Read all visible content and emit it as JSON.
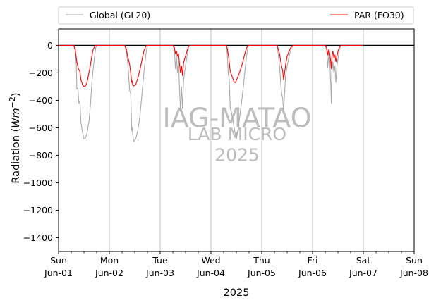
{
  "chart_data": {
    "type": "line",
    "title": "",
    "xlabel": "2025",
    "ylabel": "Radiation ($Wm{-2}$)",
    "ylabel_display": {
      "prefix": "Radiation (",
      "math": "Wm",
      "sup": "−2",
      "suffix": ")"
    },
    "ylim": [
      -1500,
      120
    ],
    "yticks": [
      0,
      -200,
      -400,
      -600,
      -800,
      -1000,
      -1200,
      -1400
    ],
    "ytick_labels": [
      "0",
      "−200",
      "−400",
      "−600",
      "−800",
      "−1000",
      "−1200",
      "−1400"
    ],
    "xlim": [
      0,
      7
    ],
    "x_unit": "days since Sun Jun-01 00:00",
    "xticks": [
      {
        "x": 0,
        "day": "Sun",
        "date": "Jun-01"
      },
      {
        "x": 1,
        "day": "Mon",
        "date": "Jun-02"
      },
      {
        "x": 2,
        "day": "Tue",
        "date": "Jun-03"
      },
      {
        "x": 3,
        "day": "Wed",
        "date": "Jun-04"
      },
      {
        "x": 4,
        "day": "Thu",
        "date": "Jun-05"
      },
      {
        "x": 5,
        "day": "Fri",
        "date": "Jun-06"
      },
      {
        "x": 6,
        "day": "Sat",
        "date": "Jun-07"
      },
      {
        "x": 7,
        "day": "Sun",
        "date": "Jun-08"
      }
    ],
    "minor_ticks_per_day": 4,
    "grid": "vertical-major",
    "zero_line": true,
    "legend": {
      "placement": "top",
      "entries": [
        "Global (GL20)",
        "PAR (FO30)"
      ]
    },
    "watermark": [
      "IAG-MATAO",
      "LAB MICRO",
      "2025"
    ],
    "series": [
      {
        "name": "Global (GL20)",
        "color": "#aaaaaa",
        "points": [
          [
            0.0,
            0
          ],
          [
            0.3,
            0
          ],
          [
            0.33,
            -20
          ],
          [
            0.35,
            -150
          ],
          [
            0.36,
            -320
          ],
          [
            0.38,
            -310
          ],
          [
            0.4,
            -420
          ],
          [
            0.42,
            -410
          ],
          [
            0.44,
            -560
          ],
          [
            0.47,
            -630
          ],
          [
            0.5,
            -680
          ],
          [
            0.53,
            -675
          ],
          [
            0.56,
            -640
          ],
          [
            0.6,
            -550
          ],
          [
            0.63,
            -420
          ],
          [
            0.66,
            -250
          ],
          [
            0.7,
            -110
          ],
          [
            0.73,
            -20
          ],
          [
            0.76,
            0
          ],
          [
            1.3,
            0
          ],
          [
            1.33,
            -40
          ],
          [
            1.36,
            -120
          ],
          [
            1.4,
            -330
          ],
          [
            1.42,
            -350
          ],
          [
            1.44,
            -620
          ],
          [
            1.45,
            -600
          ],
          [
            1.46,
            -650
          ],
          [
            1.48,
            -700
          ],
          [
            1.52,
            -680
          ],
          [
            1.56,
            -620
          ],
          [
            1.6,
            -520
          ],
          [
            1.64,
            -360
          ],
          [
            1.68,
            -200
          ],
          [
            1.72,
            -60
          ],
          [
            1.75,
            0
          ],
          [
            2.25,
            0
          ],
          [
            2.28,
            -30
          ],
          [
            2.3,
            -170
          ],
          [
            2.32,
            -80
          ],
          [
            2.34,
            -200
          ],
          [
            2.36,
            -120
          ],
          [
            2.38,
            -300
          ],
          [
            2.4,
            -480
          ],
          [
            2.42,
            -300
          ],
          [
            2.44,
            -460
          ],
          [
            2.46,
            -260
          ],
          [
            2.48,
            -200
          ],
          [
            2.5,
            -150
          ],
          [
            2.52,
            -100
          ],
          [
            2.56,
            -10
          ],
          [
            2.6,
            0
          ],
          [
            3.3,
            0
          ],
          [
            3.32,
            -60
          ],
          [
            3.34,
            -200
          ],
          [
            3.36,
            -250
          ],
          [
            3.38,
            -460
          ],
          [
            3.4,
            -480
          ],
          [
            3.42,
            -520
          ],
          [
            3.44,
            -560
          ],
          [
            3.46,
            -610
          ],
          [
            3.48,
            -650
          ],
          [
            3.5,
            -680
          ],
          [
            3.53,
            -620
          ],
          [
            3.57,
            -510
          ],
          [
            3.62,
            -360
          ],
          [
            3.66,
            -220
          ],
          [
            3.7,
            -80
          ],
          [
            3.73,
            -10
          ],
          [
            3.76,
            0
          ],
          [
            4.3,
            0
          ],
          [
            4.32,
            -50
          ],
          [
            4.35,
            -150
          ],
          [
            4.37,
            -260
          ],
          [
            4.39,
            -350
          ],
          [
            4.41,
            -380
          ],
          [
            4.43,
            -470
          ],
          [
            4.45,
            -350
          ],
          [
            4.47,
            -220
          ],
          [
            4.5,
            -150
          ],
          [
            4.54,
            -80
          ],
          [
            4.58,
            -20
          ],
          [
            4.62,
            0
          ],
          [
            5.25,
            0
          ],
          [
            5.28,
            -40
          ],
          [
            5.3,
            -160
          ],
          [
            5.32,
            -60
          ],
          [
            5.34,
            -120
          ],
          [
            5.36,
            -300
          ],
          [
            5.37,
            -420
          ],
          [
            5.38,
            -200
          ],
          [
            5.4,
            -120
          ],
          [
            5.42,
            -200
          ],
          [
            5.44,
            -150
          ],
          [
            5.46,
            -270
          ],
          [
            5.48,
            -150
          ],
          [
            5.5,
            -100
          ],
          [
            5.53,
            -30
          ],
          [
            5.56,
            0
          ],
          [
            6.0,
            0
          ]
        ]
      },
      {
        "name": "PAR (FO30)",
        "color": "#ff0000",
        "points": [
          [
            0.0,
            0
          ],
          [
            0.3,
            0
          ],
          [
            0.33,
            -40
          ],
          [
            0.36,
            -120
          ],
          [
            0.39,
            -170
          ],
          [
            0.42,
            -190
          ],
          [
            0.44,
            -250
          ],
          [
            0.47,
            -285
          ],
          [
            0.5,
            -300
          ],
          [
            0.53,
            -295
          ],
          [
            0.56,
            -270
          ],
          [
            0.59,
            -215
          ],
          [
            0.62,
            -160
          ],
          [
            0.65,
            -90
          ],
          [
            0.68,
            -30
          ],
          [
            0.72,
            -2
          ],
          [
            0.75,
            0
          ],
          [
            1.3,
            0
          ],
          [
            1.33,
            -20
          ],
          [
            1.36,
            -80
          ],
          [
            1.4,
            -140
          ],
          [
            1.42,
            -200
          ],
          [
            1.44,
            -270
          ],
          [
            1.45,
            -260
          ],
          [
            1.46,
            -290
          ],
          [
            1.48,
            -295
          ],
          [
            1.52,
            -285
          ],
          [
            1.56,
            -240
          ],
          [
            1.6,
            -180
          ],
          [
            1.64,
            -110
          ],
          [
            1.68,
            -40
          ],
          [
            1.72,
            -5
          ],
          [
            1.75,
            0
          ],
          [
            2.25,
            0
          ],
          [
            2.28,
            -15
          ],
          [
            2.3,
            -60
          ],
          [
            2.32,
            -40
          ],
          [
            2.34,
            -80
          ],
          [
            2.36,
            -60
          ],
          [
            2.38,
            -130
          ],
          [
            2.4,
            -200
          ],
          [
            2.42,
            -150
          ],
          [
            2.44,
            -220
          ],
          [
            2.46,
            -130
          ],
          [
            2.48,
            -100
          ],
          [
            2.5,
            -80
          ],
          [
            2.53,
            -40
          ],
          [
            2.56,
            -5
          ],
          [
            2.6,
            0
          ],
          [
            3.3,
            0
          ],
          [
            3.32,
            -20
          ],
          [
            3.35,
            -90
          ],
          [
            3.38,
            -190
          ],
          [
            3.4,
            -210
          ],
          [
            3.42,
            -230
          ],
          [
            3.44,
            -250
          ],
          [
            3.46,
            -270
          ],
          [
            3.48,
            -270
          ],
          [
            3.5,
            -255
          ],
          [
            3.53,
            -230
          ],
          [
            3.57,
            -190
          ],
          [
            3.62,
            -130
          ],
          [
            3.66,
            -70
          ],
          [
            3.7,
            -20
          ],
          [
            3.73,
            -2
          ],
          [
            3.76,
            0
          ],
          [
            4.3,
            0
          ],
          [
            4.32,
            -20
          ],
          [
            4.35,
            -60
          ],
          [
            4.37,
            -110
          ],
          [
            4.39,
            -150
          ],
          [
            4.41,
            -180
          ],
          [
            4.43,
            -250
          ],
          [
            4.45,
            -200
          ],
          [
            4.47,
            -140
          ],
          [
            4.5,
            -80
          ],
          [
            4.54,
            -40
          ],
          [
            4.58,
            -10
          ],
          [
            4.62,
            0
          ],
          [
            5.25,
            0
          ],
          [
            5.28,
            -20
          ],
          [
            5.3,
            -70
          ],
          [
            5.32,
            -30
          ],
          [
            5.34,
            -60
          ],
          [
            5.36,
            -130
          ],
          [
            5.37,
            -170
          ],
          [
            5.38,
            -90
          ],
          [
            5.4,
            -40
          ],
          [
            5.42,
            -90
          ],
          [
            5.44,
            -70
          ],
          [
            5.46,
            -120
          ],
          [
            5.48,
            -80
          ],
          [
            5.5,
            -45
          ],
          [
            5.53,
            -10
          ],
          [
            5.56,
            0
          ],
          [
            6.0,
            0
          ]
        ]
      }
    ]
  }
}
